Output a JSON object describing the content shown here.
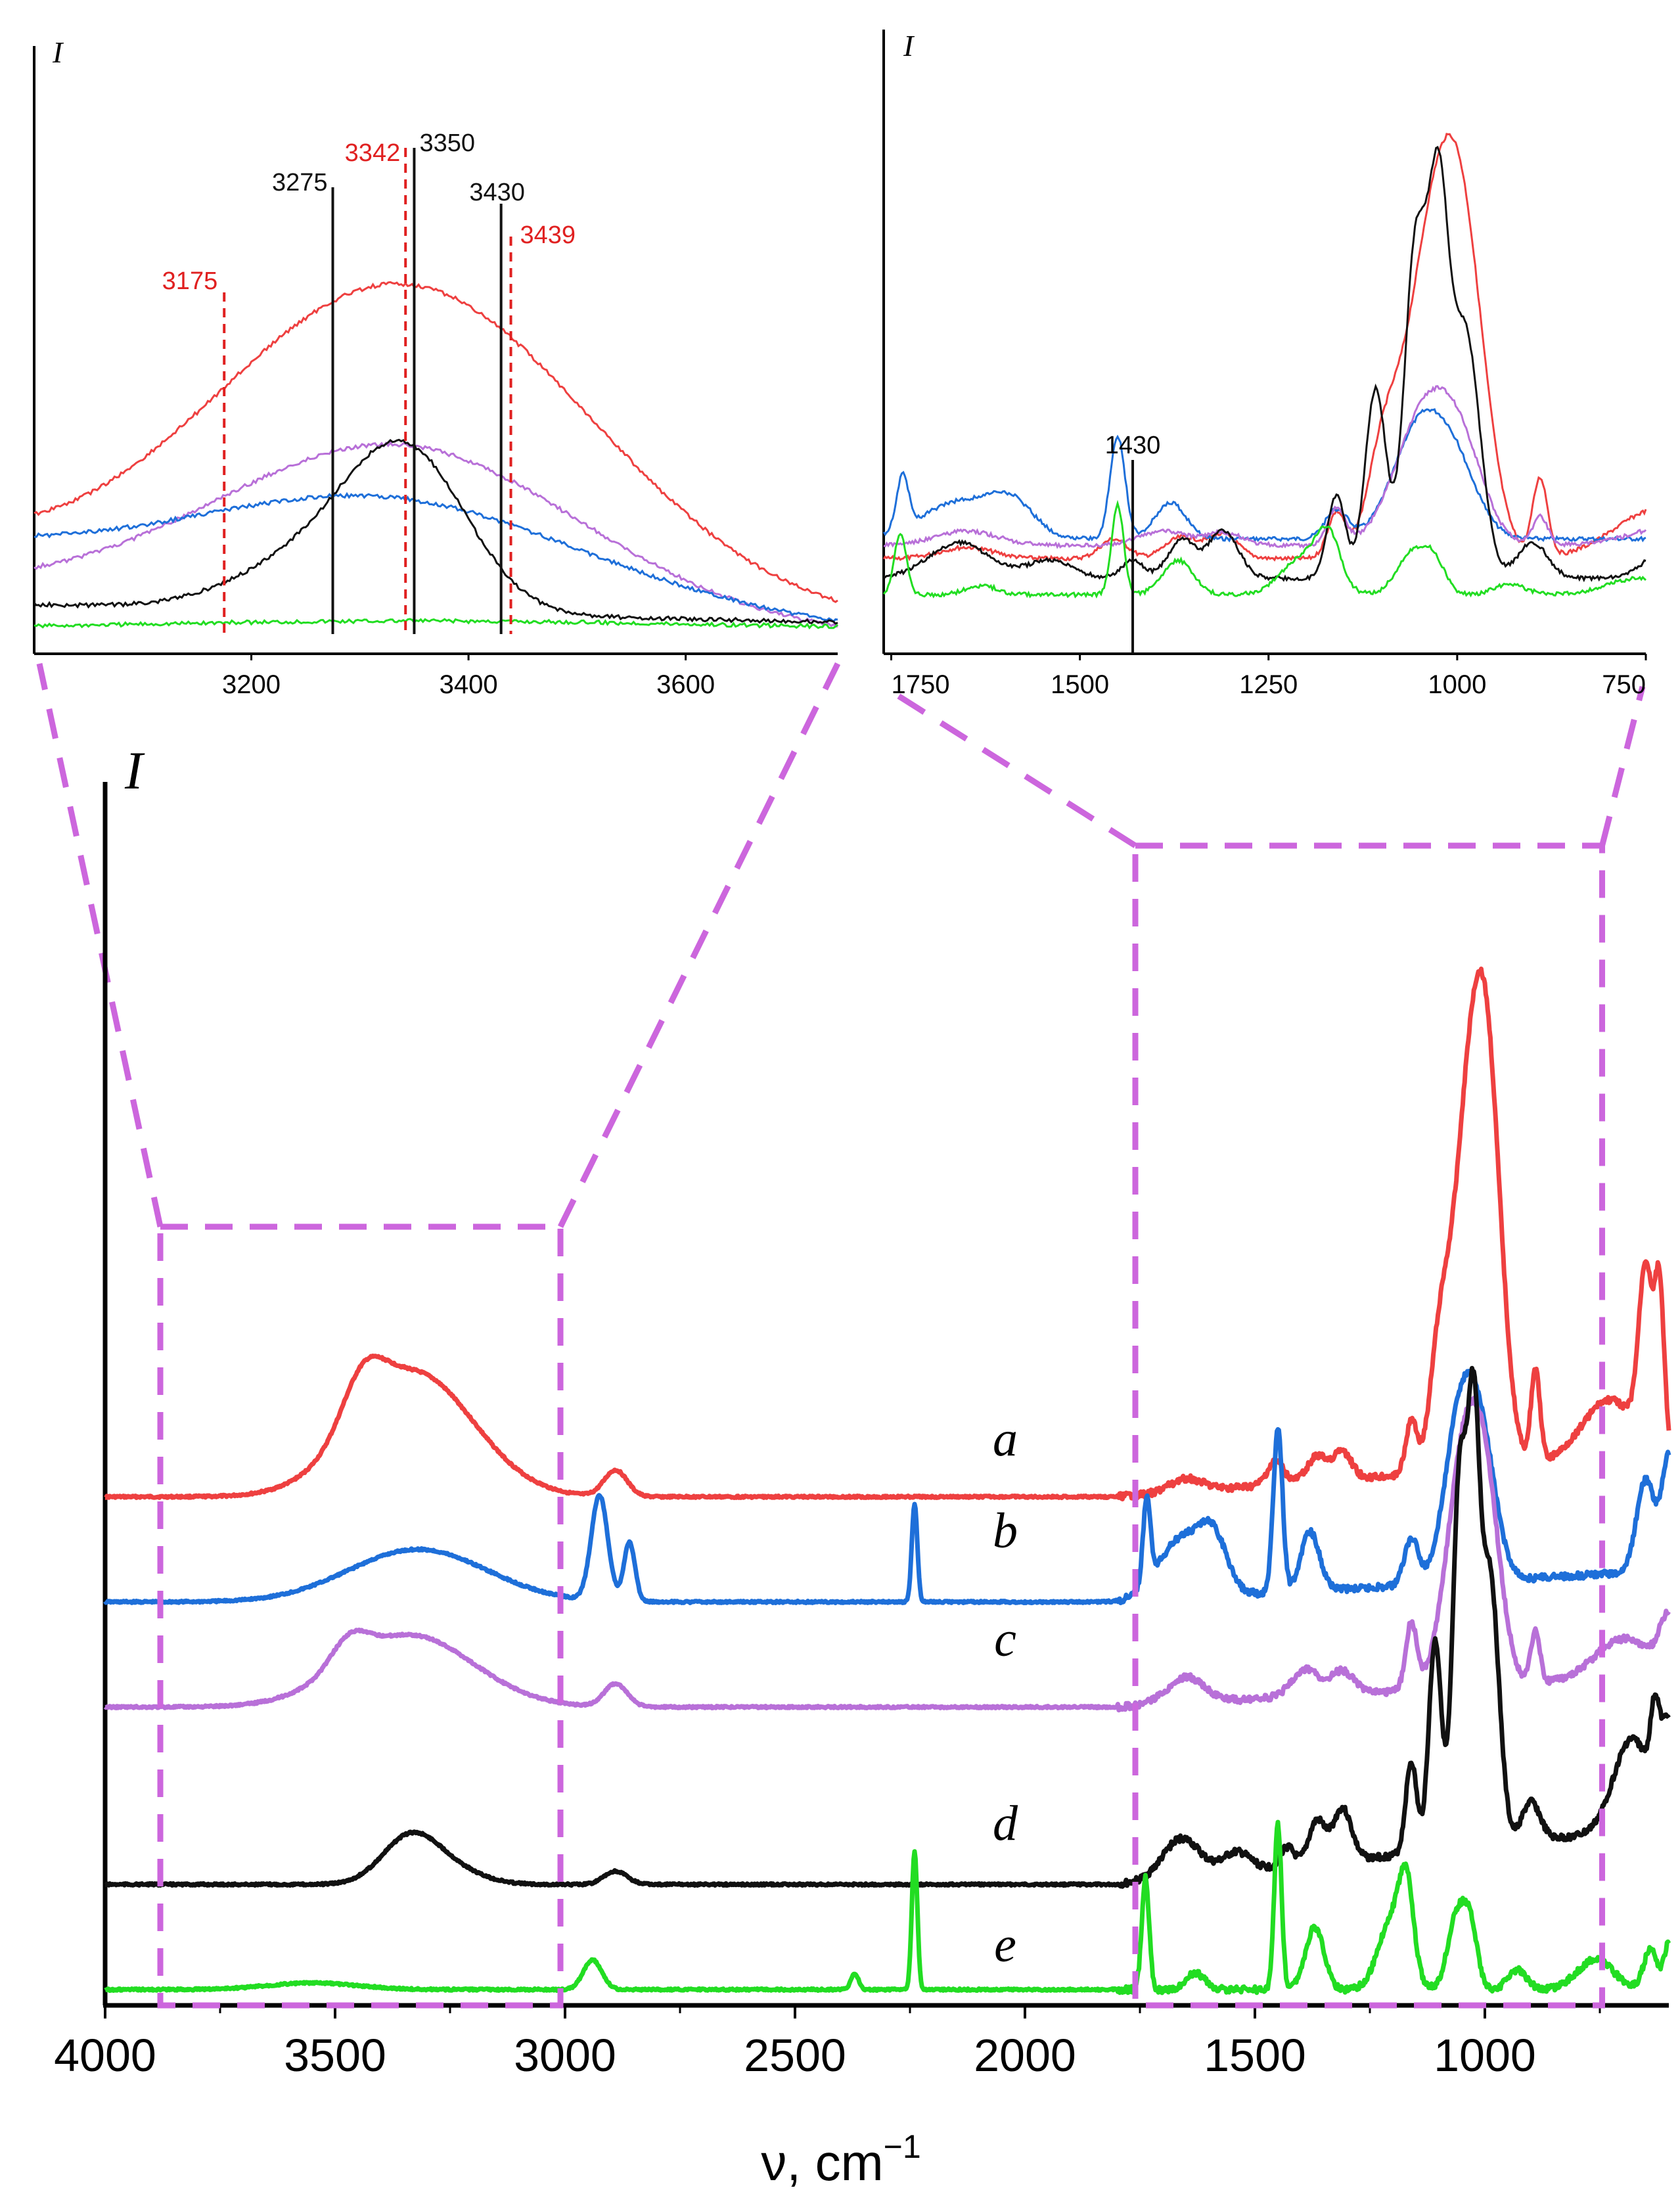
{
  "chart_data": [
    {
      "id": "main",
      "type": "line",
      "title": "",
      "ylabel": "I",
      "xlabel_base": "ν, cm",
      "xlabel_sup": "−1",
      "xlim": [
        4000,
        600
      ],
      "xticks": [
        "4000",
        "3500",
        "3000",
        "2500",
        "2000",
        "1500",
        "1000"
      ],
      "xtick_values": [
        4000,
        3500,
        3000,
        2500,
        2000,
        1500,
        1000
      ],
      "zoom_boxes": [
        {
          "name": "zoom-box-oh-region",
          "x_range": [
            3880,
            3010
          ]
        },
        {
          "name": "zoom-box-fingerprint-region",
          "x_range": [
            1760,
            745
          ]
        }
      ],
      "series": [
        {
          "name": "a",
          "color": "#EE4040",
          "offset": 750,
          "gain": 160,
          "amp": 1.0,
          "peaks": [
            [
              3330,
              190,
              130
            ],
            [
              3440,
              70,
              45
            ],
            [
              2890,
              40,
              25
            ],
            [
              1650,
              20,
              35
            ],
            [
              1455,
              35,
              18
            ],
            [
              1365,
              38,
              22
            ],
            [
              1310,
              42,
              20
            ],
            [
              1160,
              80,
              12
            ],
            [
              1100,
              130,
              20
            ],
            [
              1030,
              560,
              40
            ],
            [
              990,
              330,
              30
            ],
            [
              890,
              140,
              10
            ],
            [
              730,
              90,
              60
            ],
            [
              650,
              260,
              15
            ],
            [
              620,
              230,
              10
            ]
          ]
        },
        {
          "name": "b",
          "color": "#1E6FD9",
          "offset": 590,
          "gain": 120,
          "amp": 1.0,
          "peaks": [
            [
              3320,
              80,
              150
            ],
            [
              2925,
              160,
              18
            ],
            [
              2860,
              90,
              12
            ],
            [
              2240,
              150,
              6
            ],
            [
              1735,
              130,
              8
            ],
            [
              1660,
              90,
              50
            ],
            [
              1590,
              75,
              30
            ],
            [
              1450,
              250,
              10
            ],
            [
              1380,
              90,
              20
            ],
            [
              1160,
              70,
              15
            ],
            [
              1050,
              270,
              35
            ],
            [
              1000,
              140,
              30
            ],
            [
              650,
              140,
              20
            ],
            [
              600,
              170,
              15
            ]
          ]
        },
        {
          "name": "c",
          "color": "#B870D8",
          "offset": 430,
          "gain": 120,
          "amp": 1.0,
          "peaks": [
            [
              3340,
              110,
              140
            ],
            [
              3470,
              40,
              40
            ],
            [
              2890,
              35,
              25
            ],
            [
              1650,
              40,
              40
            ],
            [
              1390,
              40,
              30
            ],
            [
              1310,
              35,
              25
            ],
            [
              1160,
              100,
              12
            ],
            [
              1040,
              380,
              40
            ],
            [
              990,
              160,
              30
            ],
            [
              890,
              80,
              10
            ],
            [
              700,
              60,
              60
            ],
            [
              600,
              80,
              20
            ]
          ]
        },
        {
          "name": "d",
          "color": "#111111",
          "offset": 160,
          "gain": 220,
          "amp": 1.0,
          "peaks": [
            [
              3340,
              65,
              60
            ],
            [
              3260,
              25,
              70
            ],
            [
              2890,
              20,
              25
            ],
            [
              1660,
              60,
              40
            ],
            [
              1540,
              30,
              30
            ],
            [
              1430,
              30,
              15
            ],
            [
              1365,
              65,
              18
            ],
            [
              1310,
              80,
              20
            ],
            [
              1160,
              140,
              12
            ],
            [
              1108,
              320,
              14
            ],
            [
              1055,
              560,
              15
            ],
            [
              1025,
              560,
              13
            ],
            [
              990,
              420,
              20
            ],
            [
              900,
              60,
              20
            ],
            [
              680,
              140,
              40
            ],
            [
              630,
              120,
              10
            ],
            [
              600,
              150,
              15
            ]
          ]
        },
        {
          "name": "e",
          "color": "#22DD22",
          "offset": 0,
          "gain": 0,
          "amp": 1.0,
          "peaks": [
            [
              3550,
              10,
              100
            ],
            [
              2940,
              45,
              20
            ],
            [
              2370,
              25,
              8
            ],
            [
              2240,
              210,
              6
            ],
            [
              1738,
              170,
              8
            ],
            [
              1630,
              25,
              20
            ],
            [
              1450,
              250,
              8
            ],
            [
              1370,
              95,
              20
            ],
            [
              1200,
              110,
              30
            ],
            [
              1170,
              120,
              15
            ],
            [
              1060,
              115,
              20
            ],
            [
              1030,
              80,
              15
            ],
            [
              930,
              30,
              20
            ],
            [
              760,
              45,
              40
            ],
            [
              640,
              60,
              15
            ],
            [
              600,
              70,
              10
            ]
          ]
        }
      ],
      "curve_labels": [
        "a",
        "b",
        "c",
        "d",
        "e"
      ]
    },
    {
      "id": "inset-oh",
      "type": "line",
      "ylabel": "I",
      "xlim": [
        3000,
        3740
      ],
      "xticks": [
        "3200",
        "3400",
        "3600"
      ],
      "xtick_values": [
        3200,
        3400,
        3600
      ],
      "series": [
        {
          "name": "a",
          "color": "#EE4040",
          "base": 0,
          "peak_center": 3340,
          "peak_height": 290,
          "peak_width": 175
        },
        {
          "name": "c",
          "color": "#B870D8",
          "base": 0,
          "peak_center": 3335,
          "peak_height": 145,
          "peak_width": 165
        },
        {
          "name": "b",
          "color": "#1E6FD9",
          "base": 0,
          "peak_center": 3330,
          "peak_height": 100,
          "peak_width": 170
        },
        {
          "name": "d",
          "color": "#111111",
          "base": 0,
          "peak_center": 3345,
          "peak_height": 95,
          "peak_width": 90
        },
        {
          "name": "e",
          "color": "#22DD22",
          "base": 0,
          "peak_center": 3350,
          "peak_height": 4,
          "peak_width": 300
        }
      ],
      "markers": [
        {
          "x": 3175,
          "label": "3175",
          "color": "#E02020",
          "style": "dashed"
        },
        {
          "x": 3275,
          "label": "3275",
          "color": "#111111",
          "style": "solid"
        },
        {
          "x": 3342,
          "label": "3342",
          "color": "#E02020",
          "style": "dashed"
        },
        {
          "x": 3350,
          "label": "3350",
          "color": "#111111",
          "style": "solid"
        },
        {
          "x": 3430,
          "label": "3430",
          "color": "#111111",
          "style": "solid"
        },
        {
          "x": 3439,
          "label": "3439",
          "color": "#E02020",
          "style": "dashed"
        }
      ]
    },
    {
      "id": "inset-fingerprint",
      "type": "line",
      "ylabel": "I",
      "xlim": [
        1760,
        750
      ],
      "xticks": [
        "1750",
        "1500",
        "1250",
        "1000",
        "750"
      ],
      "xtick_values": [
        1750,
        1500,
        1250,
        1000,
        750
      ],
      "markers": [
        {
          "x": 1430,
          "label": "1430",
          "color": "#111111",
          "style": "solid"
        }
      ]
    }
  ]
}
